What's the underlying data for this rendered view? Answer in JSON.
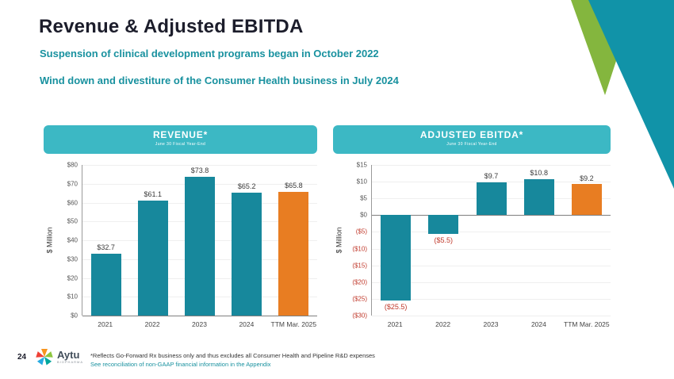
{
  "slide": {
    "title": "Revenue & Adjusted EBITDA",
    "subtitle1": "Suspension of clinical development programs began in October 2022",
    "subtitle2": "Wind down and divestiture of the Consumer Health business in July 2024",
    "page_number": "24",
    "logo_text": "Aytu",
    "logo_subtext": "BIOPHARMA",
    "footnote_line1": "*Reflects Go-Forward Rx business only and thus excludes all Consumer Health and Pipeline R&D expenses",
    "footnote_line2": "See reconciliation of non-GAAP financial information in the Appendix"
  },
  "colors": {
    "title_dark": "#1c1d2b",
    "teal_text": "#18919f",
    "banner_teal": "#3cb8c4",
    "bar_teal": "#17889c",
    "bar_orange": "#e87d22",
    "negative_red": "#c0392b",
    "corner_teal": "#1193a8",
    "corner_green": "#84b63e"
  },
  "chart_data": [
    {
      "type": "bar",
      "title": "REVENUE*",
      "subtitle": "June 30 Fiscal Year-End",
      "ylabel": "$ Million",
      "ylim": [
        0,
        80
      ],
      "ytick_step": 10,
      "categories": [
        "2021",
        "2022",
        "2023",
        "2024",
        "TTM Mar. 2025"
      ],
      "values": [
        32.7,
        61.1,
        73.8,
        65.2,
        65.8
      ],
      "value_labels": [
        "$32.7",
        "$61.1",
        "$73.8",
        "$65.2",
        "$65.8"
      ],
      "bar_colors": [
        "#17889c",
        "#17889c",
        "#17889c",
        "#17889c",
        "#e87d22"
      ],
      "grid": false,
      "legend": "none"
    },
    {
      "type": "bar",
      "title": "ADJUSTED EBITDA*",
      "subtitle": "June 30 Fiscal Year-End",
      "ylabel": "$ Million",
      "ylim": [
        -30,
        15
      ],
      "ytick_step": 5,
      "categories": [
        "2021",
        "2022",
        "2023",
        "2024",
        "TTM Mar. 2025"
      ],
      "values": [
        -25.5,
        -5.5,
        9.7,
        10.8,
        9.2
      ],
      "value_labels": [
        "($25.5)",
        "($5.5)",
        "$9.7",
        "$10.8",
        "$9.2"
      ],
      "bar_colors": [
        "#17889c",
        "#17889c",
        "#17889c",
        "#17889c",
        "#e87d22"
      ],
      "grid": false,
      "legend": "none"
    }
  ]
}
